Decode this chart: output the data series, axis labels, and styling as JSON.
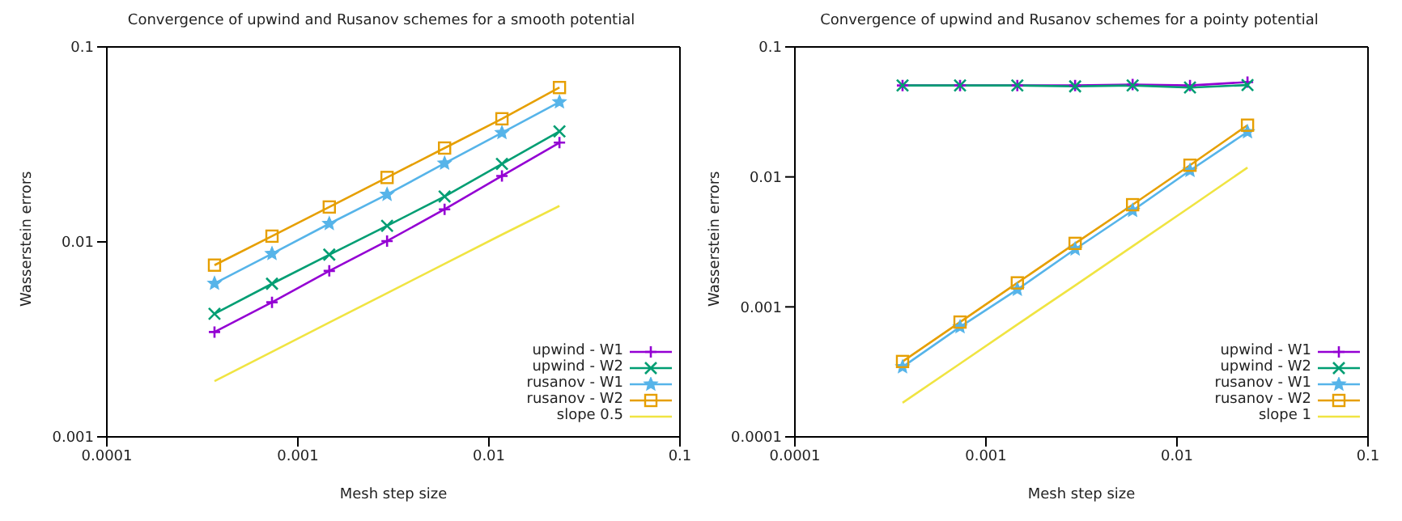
{
  "chart_data": [
    {
      "type": "line",
      "title": "Convergence of upwind and Rusanov schemes for a smooth potential",
      "xlabel": "Mesh step size",
      "ylabel": "Wasserstein errors",
      "log": "xy",
      "xlim": [
        0.0001,
        0.1
      ],
      "xticks": [
        0.0001,
        0.001,
        0.01,
        0.1
      ],
      "ylim": [
        0.001,
        0.1
      ],
      "yticks": [
        0.001,
        0.01,
        0.1
      ],
      "legend": "bottom right",
      "grid": false,
      "x": [
        0.000366,
        0.000732,
        0.00146,
        0.00293,
        0.00586,
        0.0117,
        0.0234
      ],
      "series": [
        {
          "name": "upwind - W1",
          "color": "#9400d3",
          "marker": "plus",
          "values": [
            0.00345,
            0.0049,
            0.0071,
            0.0101,
            0.0147,
            0.0218,
            0.0323
          ]
        },
        {
          "name": "upwind - W2",
          "color": "#009e73",
          "marker": "cross",
          "values": [
            0.00428,
            0.0061,
            0.0086,
            0.0121,
            0.0171,
            0.0251,
            0.0369
          ]
        },
        {
          "name": "rusanov - W1",
          "color": "#56b4e9",
          "marker": "star",
          "values": [
            0.00612,
            0.0087,
            0.0124,
            0.0175,
            0.0253,
            0.0363,
            0.0522
          ]
        },
        {
          "name": "rusanov - W2",
          "color": "#e69f00",
          "marker": "square",
          "values": [
            0.0076,
            0.0107,
            0.0151,
            0.0214,
            0.0303,
            0.0428,
            0.0619
          ]
        },
        {
          "name": "slope 0.5",
          "color": "#f0e442",
          "marker": "none",
          "values": [
            0.00193,
            0.00273,
            0.00386,
            0.00546,
            0.00772,
            0.0109,
            0.0153
          ]
        }
      ]
    },
    {
      "type": "line",
      "title": "Convergence of upwind and Rusanov schemes for a pointy potential",
      "xlabel": "Mesh step size",
      "ylabel": "Wasserstein errors",
      "log": "xy",
      "xlim": [
        0.0001,
        0.1
      ],
      "xticks": [
        0.0001,
        0.001,
        0.01,
        0.1
      ],
      "ylim": [
        0.0001,
        0.1
      ],
      "yticks": [
        0.0001,
        0.001,
        0.01,
        0.1
      ],
      "legend": "bottom right",
      "grid": false,
      "x": [
        0.000366,
        0.000732,
        0.00146,
        0.00293,
        0.00586,
        0.0117,
        0.0234
      ],
      "series": [
        {
          "name": "upwind - W1",
          "color": "#9400d3",
          "marker": "plus",
          "values": [
            0.0505,
            0.0505,
            0.0505,
            0.0505,
            0.0514,
            0.0505,
            0.0536
          ]
        },
        {
          "name": "upwind - W2",
          "color": "#009e73",
          "marker": "cross",
          "values": [
            0.0505,
            0.0505,
            0.0505,
            0.0497,
            0.0505,
            0.0487,
            0.0509
          ]
        },
        {
          "name": "rusanov - W1",
          "color": "#56b4e9",
          "marker": "star",
          "values": [
            0.000345,
            0.000701,
            0.00136,
            0.00278,
            0.00551,
            0.0112,
            0.0222
          ]
        },
        {
          "name": "rusanov - W2",
          "color": "#e69f00",
          "marker": "square",
          "values": [
            0.00038,
            0.000764,
            0.00153,
            0.00308,
            0.00611,
            0.0123,
            0.025
          ]
        },
        {
          "name": "slope 1",
          "color": "#f0e442",
          "marker": "none",
          "values": [
            0.000183,
            0.000366,
            0.000732,
            0.00146,
            0.00293,
            0.00586,
            0.0118
          ]
        }
      ]
    }
  ]
}
